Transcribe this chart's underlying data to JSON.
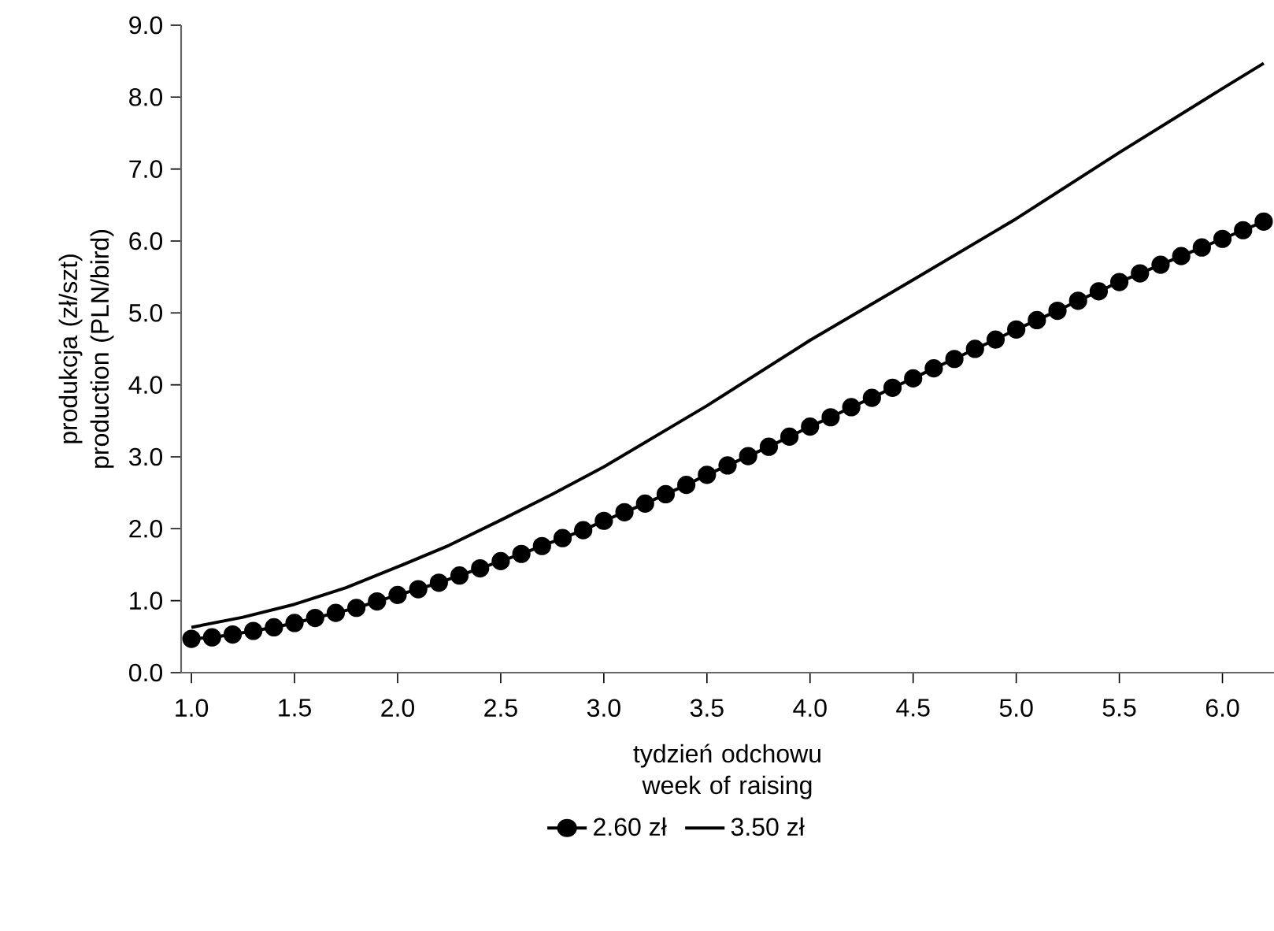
{
  "chart_data": {
    "type": "line",
    "xlabel": "tydzień odchowu week of raising",
    "ylabel": "produkcja (zł/szt) production (PLN/bird)",
    "legend": "bottom",
    "line_style": "solid",
    "xlim": [
      0.95,
      6.25
    ],
    "xticks": [
      {
        "value": 1.0,
        "label": "1.0"
      },
      {
        "value": 1.5,
        "label": "1.5"
      },
      {
        "value": 2.0,
        "label": "2.0"
      },
      {
        "value": 2.5,
        "label": "2.5"
      },
      {
        "value": 3.0,
        "label": "3.0"
      },
      {
        "value": 3.5,
        "label": "3.5"
      },
      {
        "value": 4.0,
        "label": "4.0"
      },
      {
        "value": 4.5,
        "label": "4.5"
      },
      {
        "value": 5.0,
        "label": "5.0"
      },
      {
        "value": 5.5,
        "label": "5.5"
      },
      {
        "value": 6.0,
        "label": "6.0"
      }
    ],
    "ylim": [
      0,
      9
    ],
    "yticks": [
      {
        "value": 0,
        "label": "0.0"
      },
      {
        "value": 1,
        "label": "1.0"
      },
      {
        "value": 2,
        "label": "2.0"
      },
      {
        "value": 3,
        "label": "3.0"
      },
      {
        "value": 4,
        "label": "4.0"
      },
      {
        "value": 5,
        "label": "5.0"
      },
      {
        "value": 6,
        "label": "6.0"
      },
      {
        "value": 7,
        "label": "7.0"
      },
      {
        "value": 8,
        "label": "8.0"
      },
      {
        "value": 9,
        "label": "9.0"
      }
    ],
    "series": [
      {
        "name": "2.60 zł",
        "color": "#000000",
        "marker": "circle",
        "x": [
          1.0,
          1.1,
          1.2,
          1.3,
          1.4,
          1.5,
          1.6,
          1.7,
          1.8,
          1.9,
          2.0,
          2.1,
          2.2,
          2.3,
          2.4,
          2.5,
          2.6,
          2.7,
          2.8,
          2.9,
          3.0,
          3.1,
          3.2,
          3.3,
          3.4,
          3.5,
          3.6,
          3.7,
          3.8,
          3.9,
          4.0,
          4.1,
          4.2,
          4.3,
          4.4,
          4.5,
          4.6,
          4.7,
          4.8,
          4.9,
          5.0,
          5.1,
          5.2,
          5.3,
          5.4,
          5.5,
          5.6,
          5.7,
          5.8,
          5.9,
          6.0,
          6.1,
          6.2
        ],
        "values": [
          0.47,
          0.49,
          0.53,
          0.58,
          0.63,
          0.69,
          0.76,
          0.83,
          0.9,
          0.99,
          1.08,
          1.16,
          1.25,
          1.35,
          1.45,
          1.55,
          1.65,
          1.76,
          1.87,
          1.98,
          2.11,
          2.23,
          2.35,
          2.48,
          2.61,
          2.75,
          2.88,
          3.01,
          3.14,
          3.28,
          3.42,
          3.55,
          3.69,
          3.82,
          3.96,
          4.09,
          4.23,
          4.36,
          4.5,
          4.63,
          4.77,
          4.9,
          5.03,
          5.17,
          5.3,
          5.43,
          5.55,
          5.67,
          5.79,
          5.91,
          6.03,
          6.15,
          6.27
        ]
      },
      {
        "name": "3.50 zł",
        "color": "#000000",
        "marker": "none",
        "x": [
          1.0,
          1.25,
          1.5,
          1.75,
          2.0,
          2.25,
          2.5,
          2.75,
          3.0,
          3.5,
          4.0,
          4.5,
          5.0,
          5.5,
          6.0,
          6.2
        ],
        "values": [
          0.63,
          0.77,
          0.95,
          1.18,
          1.47,
          1.77,
          2.12,
          2.48,
          2.86,
          3.71,
          4.62,
          5.46,
          6.31,
          7.23,
          8.12,
          8.47
        ]
      }
    ]
  }
}
